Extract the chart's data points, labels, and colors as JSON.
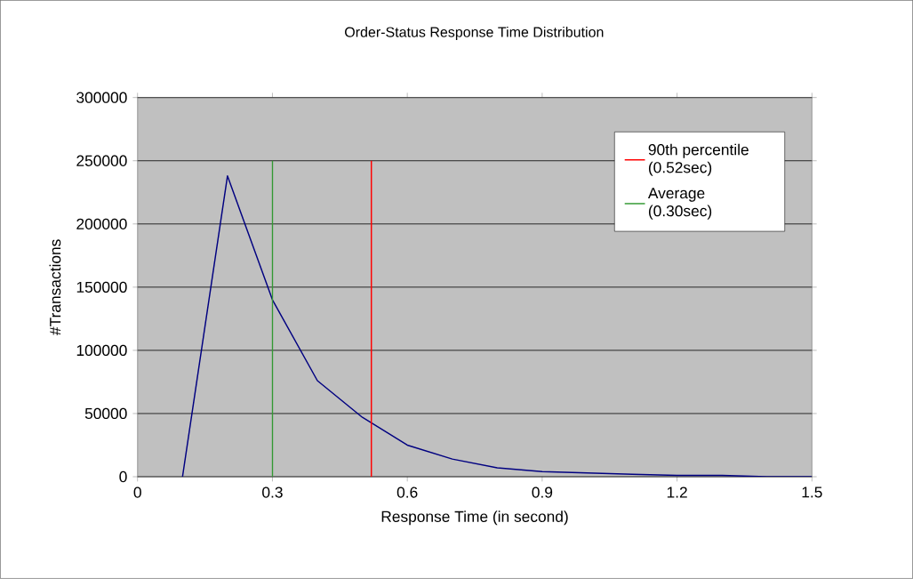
{
  "chart_data": {
    "type": "line",
    "title": "Order-Status Response Time Distribution",
    "xlabel": "Response Time (in second)",
    "ylabel": "#Transactions",
    "xlim": [
      0,
      1.5
    ],
    "xticks": [
      0,
      0.3,
      0.6,
      0.9,
      1.2,
      1.5
    ],
    "ylim": [
      0,
      300000
    ],
    "yticks": [
      0,
      50000,
      100000,
      150000,
      200000,
      250000,
      300000
    ],
    "grid": "y",
    "legend": "top right",
    "marker": "none",
    "line_style": "solid",
    "series": [
      {
        "color": "#000080",
        "x": [
          0.1,
          0.2,
          0.3,
          0.4,
          0.5,
          0.6,
          0.7,
          0.8,
          0.9,
          1.0,
          1.1,
          1.2,
          1.3,
          1.4,
          1.5
        ],
        "values": [
          0,
          238000,
          140000,
          76000,
          47000,
          25000,
          14000,
          7000,
          4000,
          3000,
          2000,
          1000,
          1000,
          0,
          0
        ]
      },
      {
        "name": "90th percentile (0.52sec)",
        "color": "#ff0000",
        "x": [
          0.52,
          0.52
        ],
        "values": [
          0,
          250000
        ]
      },
      {
        "name": "Average (0.30sec)",
        "color": "#339933",
        "x": [
          0.3,
          0.3
        ],
        "values": [
          0,
          250000
        ]
      }
    ]
  }
}
